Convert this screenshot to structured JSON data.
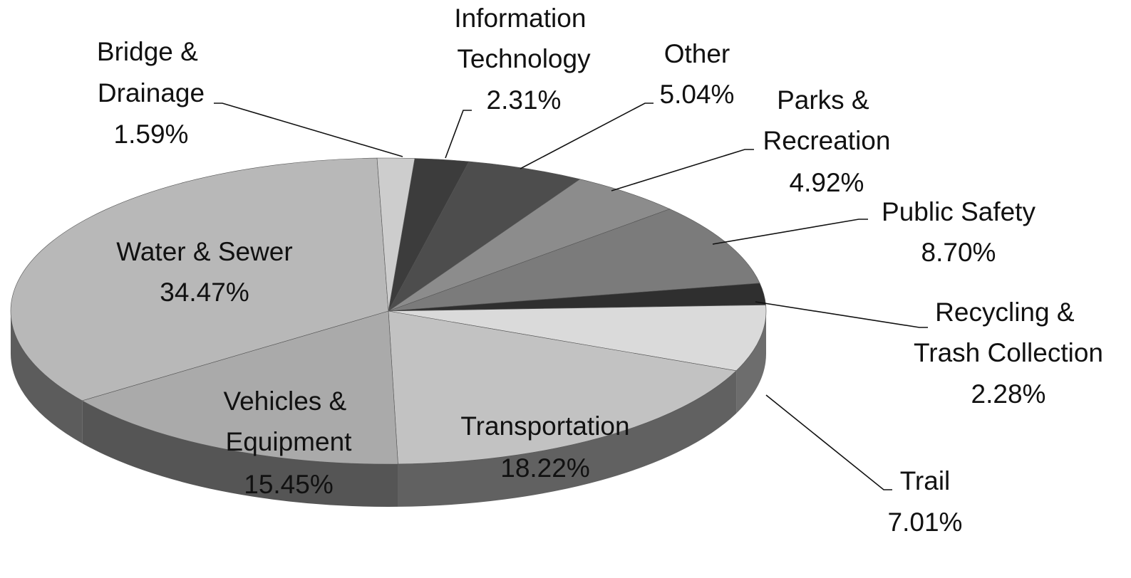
{
  "chart_data": {
    "type": "pie",
    "categories": [
      "Information Technology",
      "Other",
      "Parks & Recreation",
      "Public Safety",
      "Recycling & Trash Collection",
      "Trail",
      "Transportation",
      "Vehicles & Equipment",
      "Water & Sewer",
      "Bridge & Drainage"
    ],
    "values": [
      2.31,
      5.04,
      4.92,
      8.7,
      2.28,
      7.01,
      18.22,
      15.45,
      34.47,
      1.59
    ],
    "value_labels": [
      "2.31%",
      "5.04%",
      "4.92%",
      "8.70%",
      "2.28%",
      "7.01%",
      "18.22%",
      "15.45%",
      "34.47%",
      "1.59%"
    ],
    "colors": [
      "#3c3c3c",
      "#4d4d4d",
      "#8c8c8c",
      "#7b7b7b",
      "#2f2f2f",
      "#dadada",
      "#c2c2c2",
      "#aaaaaa",
      "#b8b8b8",
      "#cdcdcd"
    ]
  }
}
